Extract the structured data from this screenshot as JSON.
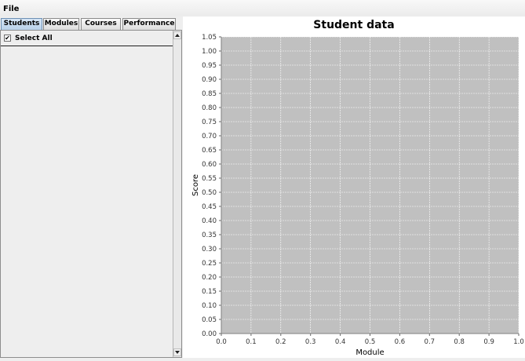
{
  "menu": {
    "file": "File"
  },
  "tabs": [
    {
      "label": "Students",
      "active": true
    },
    {
      "label": "Modules"
    },
    {
      "label": "Courses"
    },
    {
      "label": "Performance"
    }
  ],
  "students_panel": {
    "select_all_label": "Select All",
    "select_all_checked": true
  },
  "icons": {
    "scroll_up": "arrow-up-icon",
    "scroll_down": "arrow-down-icon",
    "checkbox": "check-icon"
  },
  "colors": {
    "plot_background": "#c0c0c0",
    "gridlines": "#ffffff",
    "active_tab": "#c8dcf0"
  },
  "chart_data": {
    "type": "scatter",
    "title": "Student data",
    "xlabel": "Module",
    "ylabel": "Score",
    "xlim": [
      0.0,
      1.0
    ],
    "ylim": [
      0.0,
      1.05
    ],
    "x_ticks": [
      "0.0",
      "0.1",
      "0.2",
      "0.3",
      "0.4",
      "0.5",
      "0.6",
      "0.7",
      "0.8",
      "0.9",
      "1.0"
    ],
    "y_ticks": [
      "0.00",
      "0.05",
      "0.10",
      "0.15",
      "0.20",
      "0.25",
      "0.30",
      "0.35",
      "0.40",
      "0.45",
      "0.50",
      "0.55",
      "0.60",
      "0.65",
      "0.70",
      "0.75",
      "0.80",
      "0.85",
      "0.90",
      "0.95",
      "1.00",
      "1.05"
    ],
    "grid": true,
    "series": []
  }
}
